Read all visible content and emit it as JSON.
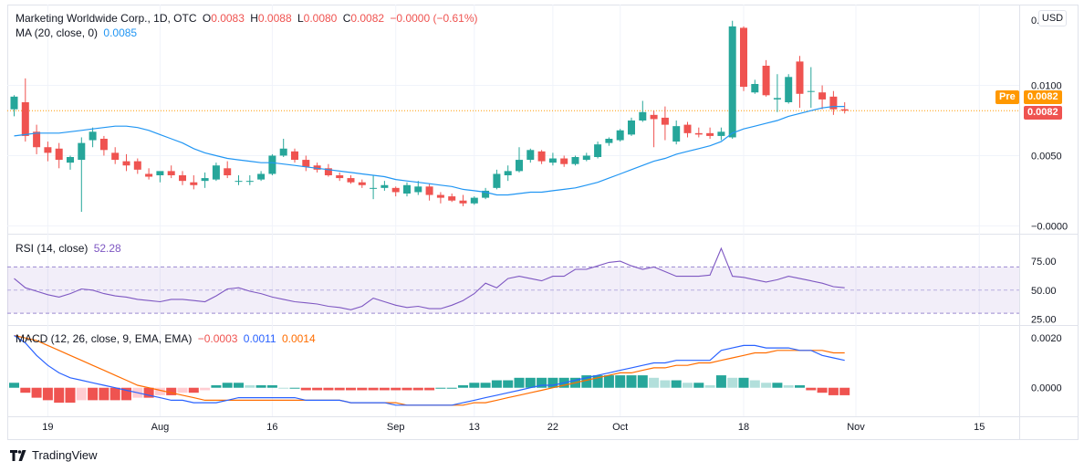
{
  "header": {
    "symbol": "Marketing Worldwide Corp., 1D, OTC",
    "o_label": "O",
    "o_value": "0.0083",
    "h_label": "H",
    "h_value": "0.0088",
    "l_label": "L",
    "l_value": "0.0080",
    "c_label": "C",
    "c_value": "0.0082",
    "change": "−0.0000 (−0.61%)"
  },
  "ma_legend": {
    "label": "MA (20, close, 0)",
    "value": "0.0085"
  },
  "rsi_legend": {
    "label": "RSI (14, close)",
    "value": "52.28"
  },
  "macd_legend": {
    "label": "MACD (12, 26, close, 9, EMA, EMA)",
    "v1": "−0.0003",
    "v2": "0.0011",
    "v3": "0.0014"
  },
  "currency_button": "USD",
  "price_tags": {
    "pre_label": "Pre",
    "pre_value": "0.0082",
    "last_value": "0.0082"
  },
  "footer": {
    "brand": "TradingView"
  },
  "colors": {
    "up": "#26a69a",
    "down": "#ef5350",
    "ma": "#2196f3",
    "rsi": "#7e57c2",
    "macd": "#2962ff",
    "signal": "#ff6d00",
    "pre": "#ff9800"
  },
  "chart_data": [
    {
      "type": "candlestick",
      "title": "Marketing Worldwide Corp., 1D, OTC",
      "x_ticks": [
        "19",
        "Aug",
        "16",
        "Sep",
        "13",
        "22",
        "Oct",
        "18",
        "Nov",
        "15"
      ],
      "y_ticks": [
        "0.0100",
        "0.0050",
        "−0.0000"
      ],
      "ylim": [
        -0.0003,
        0.0153
      ],
      "candles": [
        [
          0.0083,
          0.0093,
          0.0078,
          0.0092
        ],
        [
          0.0088,
          0.0105,
          0.006,
          0.0064
        ],
        [
          0.0067,
          0.0072,
          0.0051,
          0.0056
        ],
        [
          0.0056,
          0.006,
          0.0046,
          0.0052
        ],
        [
          0.0055,
          0.0059,
          0.0041,
          0.0047
        ],
        [
          0.0045,
          0.005,
          0.004,
          0.0049
        ],
        [
          0.0047,
          0.0063,
          0.001,
          0.0059
        ],
        [
          0.0061,
          0.007,
          0.0056,
          0.0067
        ],
        [
          0.0062,
          0.0064,
          0.005,
          0.0054
        ],
        [
          0.0052,
          0.0056,
          0.0044,
          0.0047
        ],
        [
          0.0046,
          0.0051,
          0.0039,
          0.0043
        ],
        [
          0.0046,
          0.0048,
          0.0037,
          0.004
        ],
        [
          0.0037,
          0.0041,
          0.0033,
          0.0035
        ],
        [
          0.0036,
          0.0038,
          0.0031,
          0.0039
        ],
        [
          0.0039,
          0.0043,
          0.0034,
          0.0036
        ],
        [
          0.0036,
          0.0039,
          0.0029,
          0.0032
        ],
        [
          0.0031,
          0.0036,
          0.0026,
          0.0029
        ],
        [
          0.0032,
          0.0038,
          0.0027,
          0.0034
        ],
        [
          0.0033,
          0.0045,
          0.0032,
          0.0043
        ],
        [
          0.0041,
          0.0046,
          0.0034,
          0.0036
        ],
        [
          0.0032,
          0.0036,
          0.0029,
          0.0032
        ],
        [
          0.0032,
          0.0036,
          0.0029,
          0.0032
        ],
        [
          0.0033,
          0.0039,
          0.0032,
          0.0037
        ],
        [
          0.0037,
          0.0051,
          0.0036,
          0.005
        ],
        [
          0.005,
          0.0062,
          0.0049,
          0.0055
        ],
        [
          0.0053,
          0.0055,
          0.0045,
          0.0047
        ],
        [
          0.0047,
          0.005,
          0.0039,
          0.0042
        ],
        [
          0.0043,
          0.0045,
          0.0038,
          0.004
        ],
        [
          0.0041,
          0.0044,
          0.0035,
          0.0036
        ],
        [
          0.0036,
          0.0038,
          0.0032,
          0.0034
        ],
        [
          0.0034,
          0.0036,
          0.003,
          0.0031
        ],
        [
          0.0031,
          0.0033,
          0.0027,
          0.0029
        ],
        [
          0.0027,
          0.0036,
          0.0019,
          0.0027
        ],
        [
          0.0027,
          0.0032,
          0.0025,
          0.0029
        ],
        [
          0.0027,
          0.0028,
          0.0021,
          0.0024
        ],
        [
          0.0023,
          0.0031,
          0.0021,
          0.0029
        ],
        [
          0.0024,
          0.0032,
          0.0022,
          0.0028
        ],
        [
          0.0028,
          0.003,
          0.0018,
          0.0022
        ],
        [
          0.0022,
          0.0024,
          0.0016,
          0.002
        ],
        [
          0.0021,
          0.0023,
          0.0017,
          0.0018
        ],
        [
          0.0018,
          0.0022,
          0.0014,
          0.0016
        ],
        [
          0.0016,
          0.0021,
          0.0015,
          0.002
        ],
        [
          0.002,
          0.0027,
          0.0019,
          0.0025
        ],
        [
          0.0027,
          0.004,
          0.0026,
          0.0037
        ],
        [
          0.0036,
          0.0043,
          0.0032,
          0.0039
        ],
        [
          0.0039,
          0.0056,
          0.0038,
          0.0047
        ],
        [
          0.0047,
          0.0055,
          0.0045,
          0.0054
        ],
        [
          0.0053,
          0.0054,
          0.0044,
          0.0046
        ],
        [
          0.0045,
          0.0052,
          0.0043,
          0.0048
        ],
        [
          0.0048,
          0.005,
          0.0042,
          0.0044
        ],
        [
          0.0044,
          0.005,
          0.0043,
          0.0049
        ],
        [
          0.0047,
          0.0052,
          0.0046,
          0.005
        ],
        [
          0.0049,
          0.006,
          0.0048,
          0.0058
        ],
        [
          0.0059,
          0.0063,
          0.0057,
          0.0062
        ],
        [
          0.0061,
          0.0069,
          0.006,
          0.0068
        ],
        [
          0.0065,
          0.0077,
          0.0064,
          0.0075
        ],
        [
          0.0075,
          0.0089,
          0.0074,
          0.0081
        ],
        [
          0.0079,
          0.0082,
          0.0056,
          0.0076
        ],
        [
          0.0077,
          0.0085,
          0.0061,
          0.0072
        ],
        [
          0.006,
          0.0075,
          0.0058,
          0.0071
        ],
        [
          0.0072,
          0.0074,
          0.0063,
          0.0066
        ],
        [
          0.0066,
          0.007,
          0.0063,
          0.0065
        ],
        [
          0.0066,
          0.007,
          0.0062,
          0.0064
        ],
        [
          0.0064,
          0.007,
          0.0061,
          0.0067
        ],
        [
          0.0063,
          0.0146,
          0.0062,
          0.0142
        ],
        [
          0.0141,
          0.0142,
          0.0096,
          0.0099
        ],
        [
          0.0095,
          0.0104,
          0.0094,
          0.0101
        ],
        [
          0.0114,
          0.0118,
          0.0092,
          0.0093
        ],
        [
          0.009,
          0.0108,
          0.0081,
          0.0091
        ],
        [
          0.0088,
          0.0108,
          0.0087,
          0.0106
        ],
        [
          0.0117,
          0.0121,
          0.0084,
          0.0094
        ],
        [
          0.0096,
          0.0113,
          0.0084,
          0.0096
        ],
        [
          0.0095,
          0.01,
          0.0083,
          0.009
        ],
        [
          0.0092,
          0.0096,
          0.0079,
          0.0083
        ],
        [
          0.0083,
          0.0088,
          0.008,
          0.0082
        ]
      ],
      "ma": [
        0.0064,
        0.0065,
        0.0066,
        0.0066,
        0.0066,
        0.0067,
        0.0068,
        0.0069,
        0.007,
        0.0071,
        0.0071,
        0.007,
        0.0068,
        0.0065,
        0.0062,
        0.0059,
        0.0055,
        0.0052,
        0.005,
        0.0048,
        0.0047,
        0.0046,
        0.0045,
        0.0045,
        0.0044,
        0.0043,
        0.0042,
        0.0041,
        0.004,
        0.0039,
        0.0038,
        0.0037,
        0.0036,
        0.0035,
        0.0033,
        0.0032,
        0.0031,
        0.003,
        0.0029,
        0.0028,
        0.0026,
        0.0025,
        0.0024,
        0.0022,
        0.0022,
        0.0023,
        0.0024,
        0.0024,
        0.0025,
        0.0026,
        0.0027,
        0.0029,
        0.0031,
        0.0034,
        0.0037,
        0.004,
        0.0043,
        0.0046,
        0.0048,
        0.0051,
        0.0053,
        0.0055,
        0.0057,
        0.006,
        0.0066,
        0.0069,
        0.0071,
        0.0073,
        0.0075,
        0.0078,
        0.008,
        0.0082,
        0.0084,
        0.0085,
        0.0085
      ]
    },
    {
      "type": "line",
      "title": "RSI (14, close)",
      "y_ticks": [
        "75.00",
        "50.00",
        "25.00"
      ],
      "ylim": [
        23,
        94
      ],
      "band": [
        30,
        70
      ],
      "values": [
        60,
        52,
        49,
        46,
        44,
        47,
        51,
        50,
        47,
        45,
        44,
        42,
        41,
        40,
        42,
        42,
        41,
        40,
        45,
        51,
        52,
        49,
        47,
        44,
        42,
        40,
        39,
        38,
        36,
        35,
        33,
        36,
        43,
        40,
        37,
        35,
        36,
        34,
        34,
        37,
        41,
        47,
        56,
        52,
        60,
        62,
        60,
        58,
        62,
        62,
        68,
        68,
        71,
        74,
        75,
        71,
        68,
        70,
        66,
        62,
        62,
        62,
        63,
        86,
        62,
        61,
        59,
        57,
        59,
        62,
        60,
        58,
        56,
        53,
        52
      ]
    },
    {
      "type": "histogram+line",
      "title": "MACD (12, 26, close, 9, EMA, EMA)",
      "y_ticks": [
        "0.0020",
        "0.0000"
      ],
      "ylim": [
        -0.001,
        0.0023
      ],
      "macd": [
        0.0021,
        0.0018,
        0.0013,
        0.0009,
        0.0006,
        0.0004,
        0.0003,
        0.0002,
        0.0001,
        0.0,
        -0.0001,
        -0.0002,
        -0.0003,
        -0.0004,
        -0.0005,
        -0.0005,
        -0.0006,
        -0.0006,
        -0.0006,
        -0.0005,
        -0.0004,
        -0.0004,
        -0.0004,
        -0.0004,
        -0.0004,
        -0.0004,
        -0.0005,
        -0.0005,
        -0.0005,
        -0.0005,
        -0.0006,
        -0.0006,
        -0.0006,
        -0.0006,
        -0.0007,
        -0.0007,
        -0.0007,
        -0.0007,
        -0.0007,
        -0.0007,
        -0.0006,
        -0.0005,
        -0.0004,
        -0.0003,
        -0.0002,
        -0.0001,
        0.0,
        0.0001,
        0.0001,
        0.0002,
        0.0003,
        0.0004,
        0.0005,
        0.0006,
        0.0007,
        0.0008,
        0.0009,
        0.001,
        0.001,
        0.0011,
        0.0011,
        0.0011,
        0.0011,
        0.0015,
        0.0016,
        0.0017,
        0.0017,
        0.0016,
        0.0016,
        0.0016,
        0.0015,
        0.0015,
        0.0013,
        0.0012,
        0.0011
      ],
      "signal": [
        0.0021,
        0.002,
        0.0019,
        0.0017,
        0.0015,
        0.0013,
        0.0011,
        0.0009,
        0.0007,
        0.0005,
        0.0003,
        0.0001,
        0.0,
        -0.0001,
        -0.0002,
        -0.0003,
        -0.0004,
        -0.0005,
        -0.0005,
        -0.0005,
        -0.0005,
        -0.0005,
        -0.0005,
        -0.0005,
        -0.0005,
        -0.0005,
        -0.0005,
        -0.0005,
        -0.0005,
        -0.0005,
        -0.0006,
        -0.0006,
        -0.0006,
        -0.0006,
        -0.0006,
        -0.0007,
        -0.0007,
        -0.0007,
        -0.0007,
        -0.0007,
        -0.0007,
        -0.0006,
        -0.0006,
        -0.0005,
        -0.0004,
        -0.0003,
        -0.0002,
        -0.0001,
        0.0,
        0.0001,
        0.0002,
        0.0003,
        0.0004,
        0.0005,
        0.0006,
        0.0006,
        0.0007,
        0.0008,
        0.0008,
        0.0009,
        0.0009,
        0.001,
        0.001,
        0.0011,
        0.0012,
        0.0013,
        0.0014,
        0.0014,
        0.0015,
        0.0015,
        0.0015,
        0.0015,
        0.0015,
        0.0014,
        0.0014
      ],
      "hist": [
        0.0002,
        -0.0002,
        -0.0004,
        -0.0005,
        -0.0006,
        -0.0006,
        -0.0005,
        -0.0005,
        -0.0005,
        -0.0005,
        -0.0005,
        -0.0004,
        -0.0004,
        -0.0003,
        -0.0003,
        -0.0002,
        -0.0002,
        -0.0001,
        0.0001,
        0.0002,
        0.0002,
        0.0001,
        0.0001,
        0.0001,
        0.0,
        0.0,
        -0.0001,
        -0.0001,
        -0.0001,
        -0.0001,
        -0.0001,
        -0.0001,
        -0.0001,
        -0.0001,
        -0.0001,
        -0.0001,
        -0.0001,
        -0.0001,
        0.0,
        0.0,
        0.0001,
        0.0002,
        0.0002,
        0.0003,
        0.0003,
        0.0004,
        0.0004,
        0.0004,
        0.0004,
        0.0004,
        0.0004,
        0.0005,
        0.0005,
        0.0005,
        0.0005,
        0.0005,
        0.0005,
        0.0004,
        0.0003,
        0.0003,
        0.0002,
        0.0002,
        0.0001,
        0.0005,
        0.0004,
        0.0004,
        0.0003,
        0.0002,
        0.0002,
        0.0001,
        0.0001,
        -0.0001,
        -0.0002,
        -0.0003,
        -0.0003
      ]
    }
  ]
}
